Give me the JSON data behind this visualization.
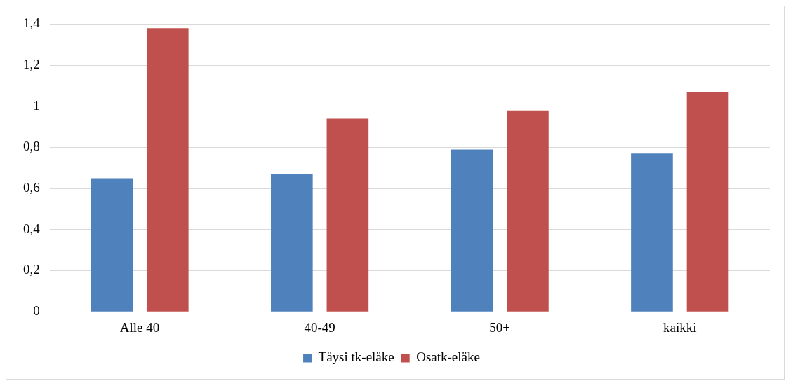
{
  "chart_data": {
    "type": "bar",
    "categories": [
      "Alle 40",
      "40-49",
      "50+",
      "kaikki"
    ],
    "series": [
      {
        "name": "Täysi tk-eläke",
        "color": "#4f81bd",
        "values": [
          0.65,
          0.67,
          0.79,
          0.77
        ]
      },
      {
        "name": "Osatk-eläke",
        "color": "#c0504d",
        "values": [
          1.38,
          0.94,
          0.98,
          1.07
        ]
      }
    ],
    "ylim": [
      0,
      1.4
    ],
    "yticks": [
      {
        "value": 0,
        "label": "0"
      },
      {
        "value": 0.2,
        "label": "0,2"
      },
      {
        "value": 0.4,
        "label": "0,4"
      },
      {
        "value": 0.6,
        "label": "0,6"
      },
      {
        "value": 0.8,
        "label": "0,8"
      },
      {
        "value": 1,
        "label": "1"
      },
      {
        "value": 1.2,
        "label": "1,2"
      },
      {
        "value": 1.4,
        "label": "1,4"
      }
    ],
    "grid": "y",
    "legend": "bottom"
  }
}
